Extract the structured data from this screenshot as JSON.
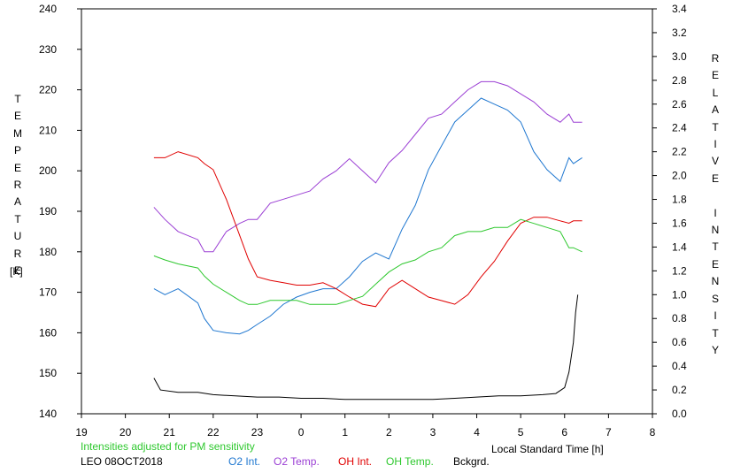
{
  "chart_data": {
    "type": "line",
    "title": "",
    "x_axis": {
      "label": "Local Standard Time [h]",
      "range": [
        19,
        32
      ],
      "ticks": [
        19,
        20,
        21,
        22,
        23,
        24,
        25,
        26,
        27,
        28,
        29,
        30,
        31,
        32
      ],
      "tick_labels": [
        "19",
        "20",
        "21",
        "22",
        "23",
        "0",
        "1",
        "2",
        "3",
        "4",
        "5",
        "6",
        "7",
        "8"
      ]
    },
    "y_left": {
      "label_letters": [
        "T",
        "E",
        "M",
        "P",
        "E",
        "R",
        "A",
        "T",
        "U",
        "R",
        "E"
      ],
      "unit": "[K]",
      "range": [
        140,
        240
      ],
      "ticks": [
        140,
        150,
        160,
        170,
        180,
        190,
        200,
        210,
        220,
        230,
        240
      ]
    },
    "y_right": {
      "label_letters": [
        "R",
        "E",
        "L",
        "A",
        "T",
        "I",
        "V",
        "E",
        "",
        "I",
        "N",
        "T",
        "E",
        "N",
        "S",
        "I",
        "T",
        "Y"
      ],
      "range": [
        0,
        3.4
      ],
      "ticks": [
        "0.0",
        "0.2",
        "0.4",
        "0.6",
        "0.8",
        "1.0",
        "1.2",
        "1.4",
        "1.6",
        "1.8",
        "2.0",
        "2.2",
        "2.4",
        "2.6",
        "2.8",
        "3.0",
        "3.2",
        "3.4"
      ]
    },
    "grid": false,
    "note": "Intensities adjusted for PM sensitivity",
    "station": "LEO 08OCT2018",
    "series": [
      {
        "name": "O2 Int.",
        "color": "#1f77d0",
        "axis": "right",
        "x": [
          20.65,
          20.9,
          21.2,
          21.65,
          21.8,
          22.0,
          22.3,
          22.6,
          22.8,
          23.0,
          23.3,
          23.6,
          23.9,
          24.2,
          24.5,
          24.8,
          25.1,
          25.4,
          25.7,
          26.0,
          26.3,
          26.6,
          26.9,
          27.2,
          27.5,
          27.8,
          28.1,
          28.4,
          28.7,
          29.0,
          29.3,
          29.6,
          29.9,
          30.1,
          30.2,
          30.4
        ],
        "y": [
          1.05,
          1.0,
          1.05,
          0.93,
          0.8,
          0.7,
          0.68,
          0.67,
          0.7,
          0.75,
          0.82,
          0.92,
          0.98,
          1.02,
          1.05,
          1.05,
          1.15,
          1.28,
          1.35,
          1.3,
          1.55,
          1.75,
          2.05,
          2.25,
          2.45,
          2.55,
          2.65,
          2.6,
          2.55,
          2.45,
          2.2,
          2.05,
          1.95,
          2.15,
          2.1,
          2.15
        ]
      },
      {
        "name": "O2 Temp.",
        "color": "#9b3fd4",
        "axis": "left",
        "x": [
          20.65,
          20.9,
          21.2,
          21.65,
          21.8,
          22.0,
          22.3,
          22.6,
          22.8,
          23.0,
          23.3,
          23.6,
          23.9,
          24.2,
          24.5,
          24.8,
          25.1,
          25.4,
          25.7,
          26.0,
          26.3,
          26.6,
          26.9,
          27.2,
          27.5,
          27.8,
          28.1,
          28.4,
          28.7,
          29.0,
          29.3,
          29.6,
          29.9,
          30.1,
          30.2,
          30.4
        ],
        "y": [
          191,
          188,
          185,
          183,
          180,
          180,
          185,
          187,
          188,
          188,
          192,
          193,
          194,
          195,
          198,
          200,
          203,
          200,
          197,
          202,
          205,
          209,
          213,
          214,
          217,
          220,
          222,
          222,
          221,
          219,
          217,
          214,
          212,
          214,
          212,
          212
        ]
      },
      {
        "name": "OH Int.",
        "color": "#e00000",
        "axis": "right",
        "x": [
          20.65,
          20.9,
          21.2,
          21.65,
          21.8,
          22.0,
          22.3,
          22.6,
          22.8,
          23.0,
          23.3,
          23.6,
          23.9,
          24.2,
          24.5,
          24.8,
          25.1,
          25.4,
          25.7,
          26.0,
          26.3,
          26.6,
          26.9,
          27.2,
          27.5,
          27.8,
          28.1,
          28.4,
          28.7,
          29.0,
          29.3,
          29.6,
          29.9,
          30.1,
          30.2,
          30.4
        ],
        "y": [
          2.15,
          2.15,
          2.2,
          2.15,
          2.1,
          2.05,
          1.8,
          1.5,
          1.3,
          1.15,
          1.12,
          1.1,
          1.08,
          1.08,
          1.1,
          1.05,
          0.98,
          0.92,
          0.9,
          1.05,
          1.12,
          1.05,
          0.98,
          0.95,
          0.92,
          1.0,
          1.15,
          1.28,
          1.45,
          1.6,
          1.65,
          1.65,
          1.62,
          1.6,
          1.62,
          1.62
        ]
      },
      {
        "name": "OH Temp.",
        "color": "#2ec82e",
        "axis": "left",
        "x": [
          20.65,
          20.9,
          21.2,
          21.65,
          21.8,
          22.0,
          22.3,
          22.6,
          22.8,
          23.0,
          23.3,
          23.6,
          23.9,
          24.2,
          24.5,
          24.8,
          25.1,
          25.4,
          25.7,
          26.0,
          26.3,
          26.6,
          26.9,
          27.2,
          27.5,
          27.8,
          28.1,
          28.4,
          28.7,
          29.0,
          29.3,
          29.6,
          29.9,
          30.1,
          30.2,
          30.4
        ],
        "y": [
          179,
          178,
          177,
          176,
          174,
          172,
          170,
          168,
          167,
          167,
          168,
          168,
          168,
          167,
          167,
          167,
          168,
          169,
          172,
          175,
          177,
          178,
          180,
          181,
          184,
          185,
          185,
          186,
          186,
          188,
          187,
          186,
          185,
          181,
          181,
          180
        ]
      },
      {
        "name": "Bckgrd.",
        "color": "#000000",
        "axis": "right",
        "x": [
          20.65,
          20.8,
          21.2,
          21.65,
          22.0,
          22.5,
          23.0,
          23.5,
          24.0,
          24.5,
          25.0,
          25.5,
          26.0,
          26.5,
          27.0,
          27.5,
          28.0,
          28.5,
          29.0,
          29.5,
          29.8,
          30.0,
          30.1,
          30.2,
          30.25,
          30.3
        ],
        "y": [
          0.3,
          0.2,
          0.18,
          0.18,
          0.16,
          0.15,
          0.14,
          0.14,
          0.13,
          0.13,
          0.12,
          0.12,
          0.12,
          0.12,
          0.12,
          0.13,
          0.14,
          0.15,
          0.15,
          0.16,
          0.17,
          0.22,
          0.35,
          0.6,
          0.85,
          1.0
        ]
      }
    ]
  }
}
